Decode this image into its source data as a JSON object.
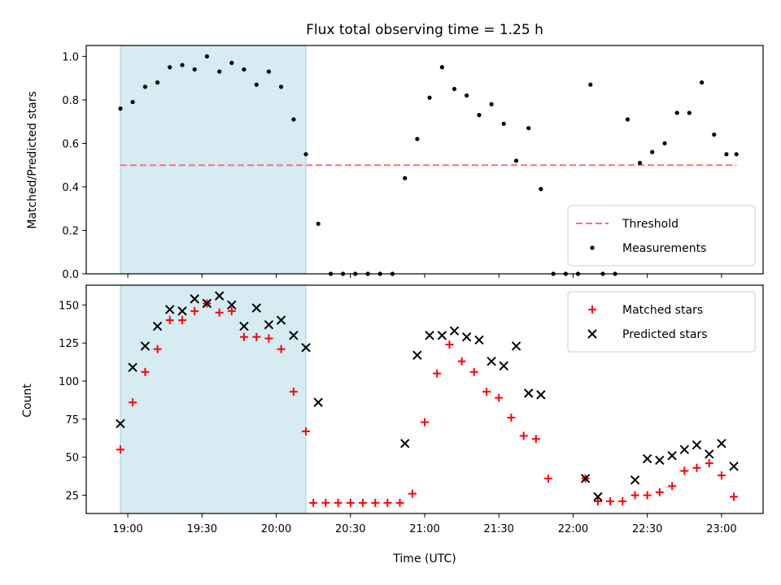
{
  "chart_data": {
    "type": "scatter",
    "title": "Flux total observing time = 1.25 h",
    "shared_x": {
      "label": "Time (UTC)",
      "tick_labels": [
        "19:00",
        "19:30",
        "20:00",
        "20:30",
        "21:00",
        "21:30",
        "22:00",
        "22:30",
        "23:00"
      ],
      "ticks_hours": [
        19.0,
        19.5,
        20.0,
        20.5,
        21.0,
        21.5,
        22.0,
        22.5,
        23.0
      ],
      "range_hours": [
        18.72,
        23.28
      ]
    },
    "shaded_window_hours": [
      18.95,
      20.2
    ],
    "shaded_color": "#add8e6",
    "panels": [
      {
        "ylabel": "Matched/Predicted stars",
        "ylim": [
          0.0,
          1.05
        ],
        "yticks": [
          0.0,
          0.2,
          0.4,
          0.6,
          0.8,
          1.0
        ],
        "ytick_labels": [
          "0.0",
          "0.2",
          "0.4",
          "0.6",
          "0.8",
          "1.0"
        ],
        "legend_position": "lower-right",
        "threshold": {
          "name": "Threshold",
          "value": 0.5,
          "x_range": [
            18.95,
            23.1
          ],
          "color": "#ff7070"
        },
        "series": [
          {
            "name": "Measurements",
            "color": "#000000",
            "marker": "dot",
            "x": [
              18.95,
              19.033,
              19.117,
              19.2,
              19.283,
              19.367,
              19.45,
              19.533,
              19.617,
              19.7,
              19.783,
              19.867,
              19.95,
              20.033,
              20.117,
              20.2,
              20.283,
              20.367,
              20.45,
              20.533,
              20.617,
              20.7,
              20.783,
              20.867,
              20.95,
              21.033,
              21.117,
              21.2,
              21.283,
              21.367,
              21.45,
              21.533,
              21.617,
              21.7,
              21.783,
              21.867,
              21.95,
              22.033,
              22.117,
              22.2,
              22.283,
              22.367,
              22.45,
              22.533,
              22.617,
              22.7,
              22.783,
              22.867,
              22.95,
              23.033,
              23.1
            ],
            "y": [
              0.76,
              0.79,
              0.86,
              0.88,
              0.95,
              0.96,
              0.94,
              1.0,
              0.93,
              0.97,
              0.94,
              0.87,
              0.93,
              0.86,
              0.71,
              0.55,
              0.23,
              0.0,
              0.0,
              0.0,
              0.0,
              0.0,
              0.0,
              0.44,
              0.62,
              0.81,
              0.95,
              0.85,
              0.82,
              0.73,
              0.78,
              0.69,
              0.52,
              0.67,
              0.39,
              0.0,
              0.0,
              0.0,
              0.87,
              0.0,
              0.0,
              0.71,
              0.51,
              0.56,
              0.6,
              0.74,
              0.74,
              0.88,
              0.64,
              0.55,
              0.55
            ]
          }
        ]
      },
      {
        "ylabel": "Count",
        "ylim": [
          13,
          163
        ],
        "yticks": [
          25,
          50,
          75,
          100,
          125,
          150
        ],
        "ytick_labels": [
          "25",
          "50",
          "75",
          "100",
          "125",
          "150"
        ],
        "legend_position": "upper-right",
        "series": [
          {
            "name": "Matched stars",
            "color": "#ff0000",
            "marker": "plus",
            "x": [
              18.95,
              19.033,
              19.117,
              19.2,
              19.283,
              19.367,
              19.45,
              19.533,
              19.617,
              19.7,
              19.783,
              19.867,
              19.95,
              20.033,
              20.117,
              20.2,
              20.25,
              20.333,
              20.417,
              20.5,
              20.583,
              20.667,
              20.75,
              20.833,
              20.917,
              21.0,
              21.083,
              21.167,
              21.25,
              21.333,
              21.417,
              21.5,
              21.583,
              21.667,
              21.75,
              21.833,
              22.083,
              22.167,
              22.25,
              22.333,
              22.417,
              22.5,
              22.583,
              22.667,
              22.75,
              22.833,
              22.917,
              23.0,
              23.083
            ],
            "y": [
              55,
              86,
              106,
              121,
              140,
              140,
              146,
              151,
              145,
              146,
              129,
              129,
              128,
              121,
              93,
              67,
              20,
              20,
              20,
              20,
              20,
              20,
              20,
              20,
              26,
              73,
              105,
              124,
              113,
              106,
              93,
              89,
              76,
              64,
              62,
              36,
              36,
              21,
              21,
              21,
              25,
              25,
              27,
              31,
              41,
              43,
              46,
              38,
              24
            ]
          },
          {
            "name": "Predicted stars",
            "color": "#000000",
            "marker": "cross",
            "x": [
              18.95,
              19.033,
              19.117,
              19.2,
              19.283,
              19.367,
              19.45,
              19.533,
              19.617,
              19.7,
              19.783,
              19.867,
              19.95,
              20.033,
              20.117,
              20.2,
              20.283,
              20.867,
              20.95,
              21.033,
              21.117,
              21.2,
              21.283,
              21.367,
              21.45,
              21.533,
              21.617,
              21.7,
              21.783,
              22.083,
              22.167,
              22.417,
              22.5,
              22.583,
              22.667,
              22.75,
              22.833,
              22.917,
              23.0,
              23.083
            ],
            "y": [
              72,
              109,
              123,
              136,
              147,
              146,
              154,
              151,
              156,
              150,
              136,
              148,
              137,
              140,
              130,
              122,
              86,
              59,
              117,
              130,
              130,
              133,
              129,
              127,
              113,
              110,
              123,
              92,
              91,
              36,
              24,
              35,
              49,
              48,
              51,
              55,
              58,
              52,
              59,
              44
            ]
          }
        ]
      }
    ]
  }
}
